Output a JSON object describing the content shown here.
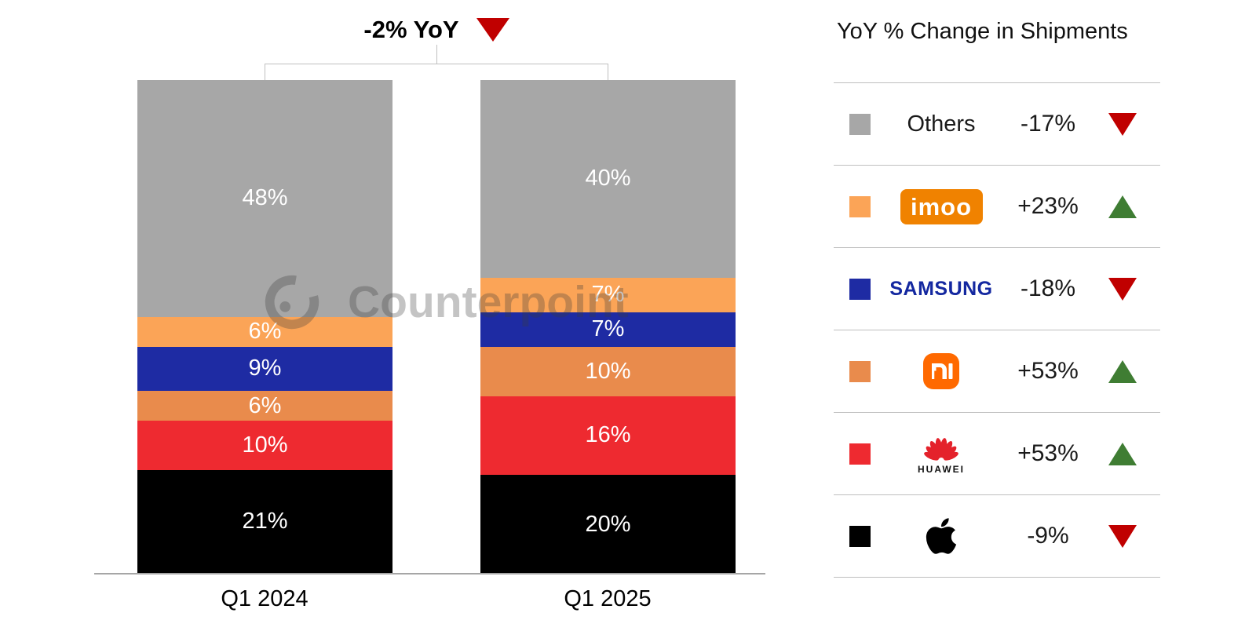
{
  "annotation": {
    "label": "-2% YoY",
    "direction": "down"
  },
  "watermark": {
    "text": "Counterpoint"
  },
  "chart_data": {
    "type": "bar",
    "stacked": true,
    "unit": "%",
    "title": "-2% YoY",
    "categories": [
      "Q1 2024",
      "Q1 2025"
    ],
    "series": [
      {
        "name": "Others",
        "color": "#A7A7A7",
        "values": [
          48,
          40
        ]
      },
      {
        "name": "imoo",
        "color": "#FBA457",
        "values": [
          6,
          7
        ]
      },
      {
        "name": "Samsung",
        "color": "#1E2BA3",
        "values": [
          9,
          7
        ]
      },
      {
        "name": "Xiaomi",
        "color": "#E98B4C",
        "values": [
          6,
          10
        ]
      },
      {
        "name": "Huawei",
        "color": "#EE2A30",
        "values": [
          10,
          16
        ]
      },
      {
        "name": "Apple",
        "color": "#000000",
        "values": [
          21,
          20
        ]
      }
    ],
    "ylim": [
      0,
      100
    ],
    "legend_position": "right",
    "value_labels": "inside, white"
  },
  "legend": {
    "title": "YoY % Change in Shipments",
    "rows": [
      {
        "brand": "Others",
        "swatch": "#A7A7A7",
        "change": "-17%",
        "direction": "down"
      },
      {
        "brand": "imoo",
        "swatch": "#FBA457",
        "change": "+23%",
        "direction": "up",
        "logo_text": "imoo"
      },
      {
        "brand": "Samsung",
        "swatch": "#1E2BA3",
        "change": "-18%",
        "direction": "down",
        "logo_text": "SAMSUNG"
      },
      {
        "brand": "Xiaomi",
        "swatch": "#E98B4C",
        "change": "+53%",
        "direction": "up"
      },
      {
        "brand": "Huawei",
        "swatch": "#EE2A30",
        "change": "+53%",
        "direction": "up",
        "logo_text": "HUAWEI"
      },
      {
        "brand": "Apple",
        "swatch": "#000000",
        "change": "-9%",
        "direction": "down"
      }
    ]
  },
  "colors": {
    "up_triangle": "#3F7D33",
    "down_triangle": "#C00000",
    "axis_line": "#A6A6A6",
    "bracket_line": "#BFBFBF",
    "separator_line": "#BFBFBF",
    "imoo_logo_bg": "#F08200",
    "xiaomi_logo_bg": "#FF6900",
    "samsung_wordmark": "#1428A0",
    "huawei_logo_red": "#E4222B"
  }
}
